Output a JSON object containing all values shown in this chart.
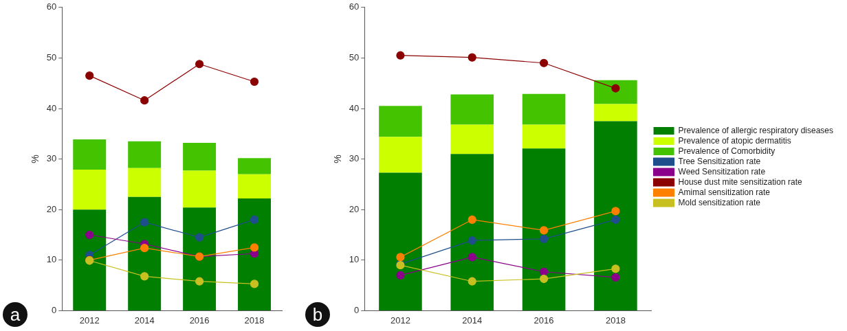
{
  "chart_data": [
    {
      "type": "bar",
      "stacked": true,
      "ylabel": "%",
      "annotations": [
        "a"
      ],
      "categories": [
        "2012",
        "2014",
        "2016",
        "2018"
      ],
      "ylim": [
        0,
        60
      ],
      "yticks": [
        0,
        10,
        20,
        30,
        40,
        50,
        60
      ],
      "marker": "circle",
      "series": [
        {
          "type": "bar",
          "color": "#007f00",
          "values": [
            20,
            22.5,
            20.4,
            22.2
          ]
        },
        {
          "type": "bar",
          "color": "#ccff00",
          "values": [
            7.9,
            5.7,
            7.3,
            4.8
          ]
        },
        {
          "type": "bar",
          "color": "#44c400",
          "values": [
            6.0,
            5.3,
            5.5,
            3.2
          ]
        },
        {
          "type": "line",
          "color": "#1f4e8c",
          "values": [
            11,
            17.5,
            14.5,
            18
          ]
        },
        {
          "type": "line",
          "color": "#8b008b",
          "values": [
            15,
            13.2,
            10.7,
            11.3
          ]
        },
        {
          "type": "line",
          "color": "#8b0000",
          "values": [
            46.5,
            41.6,
            48.8,
            45.3
          ]
        },
        {
          "type": "line",
          "color": "#ff8000",
          "values": [
            10,
            12.4,
            10.7,
            12.5
          ]
        },
        {
          "type": "line",
          "color": "#c8c020",
          "values": [
            9.9,
            6.8,
            5.8,
            5.3
          ]
        }
      ]
    },
    {
      "type": "bar",
      "stacked": true,
      "ylabel": "%",
      "annotations": [
        "b"
      ],
      "categories": [
        "2012",
        "2014",
        "2016",
        "2018"
      ],
      "ylim": [
        0,
        60
      ],
      "yticks": [
        0,
        10,
        20,
        30,
        40,
        50,
        60
      ],
      "marker": "circle",
      "legend": "right",
      "series": [
        {
          "type": "bar",
          "name": "Prevalence of allergic respiratory diseases",
          "color": "#007f00",
          "values": [
            27.3,
            31,
            32.1,
            37.5
          ]
        },
        {
          "type": "bar",
          "name": "Prevalence of atopic dermatitis",
          "color": "#ccff00",
          "values": [
            7.1,
            5.8,
            4.7,
            3.4
          ]
        },
        {
          "type": "bar",
          "name": "Prevalence of Comorbidity",
          "color": "#44c400",
          "values": [
            6.1,
            6.0,
            6.1,
            4.7
          ]
        },
        {
          "type": "line",
          "name": "Tree Sensitization rate",
          "color": "#1f4e8c",
          "values": [
            9.2,
            13.9,
            14.2,
            18
          ]
        },
        {
          "type": "line",
          "name": "Weed Sensitization rate",
          "color": "#8b008b",
          "values": [
            7,
            10.6,
            7.7,
            6.6
          ]
        },
        {
          "type": "line",
          "name": "House dust mite sensitization rate",
          "color": "#8b0000",
          "values": [
            50.5,
            50.1,
            49.0,
            44.0
          ]
        },
        {
          "type": "line",
          "name": "Amimal sensitization rate",
          "color": "#ff8000",
          "values": [
            10.6,
            18,
            15.9,
            19.7
          ]
        },
        {
          "type": "line",
          "name": "Mold sensitization rate",
          "color": "#c8c020",
          "values": [
            9,
            5.8,
            6.3,
            8.3
          ]
        }
      ]
    }
  ]
}
